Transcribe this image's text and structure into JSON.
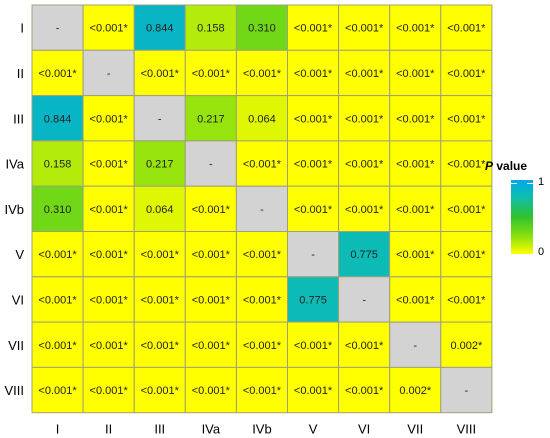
{
  "chart_data": {
    "type": "heatmap",
    "labels": [
      "I",
      "II",
      "III",
      "IVa",
      "IVb",
      "V",
      "VI",
      "VII",
      "VIII"
    ],
    "cells": [
      [
        "-",
        "<0.001*",
        "0.844",
        "0.158",
        "0.310",
        "<0.001*",
        "<0.001*",
        "<0.001*",
        "<0.001*"
      ],
      [
        "<0.001*",
        "-",
        "<0.001*",
        "<0.001*",
        "<0.001*",
        "<0.001*",
        "<0.001*",
        "<0.001*",
        "<0.001*"
      ],
      [
        "0.844",
        "<0.001*",
        "-",
        "0.217",
        "0.064",
        "<0.001*",
        "<0.001*",
        "<0.001*",
        "<0.001*"
      ],
      [
        "0.158",
        "<0.001*",
        "0.217",
        "-",
        "<0.001*",
        "<0.001*",
        "<0.001*",
        "<0.001*",
        "<0.001*"
      ],
      [
        "0.310",
        "<0.001*",
        "0.064",
        "<0.001*",
        "-",
        "<0.001*",
        "<0.001*",
        "<0.001*",
        "<0.001*"
      ],
      [
        "<0.001*",
        "<0.001*",
        "<0.001*",
        "<0.001*",
        "<0.001*",
        "-",
        "0.775",
        "<0.001*",
        "<0.001*"
      ],
      [
        "<0.001*",
        "<0.001*",
        "<0.001*",
        "<0.001*",
        "<0.001*",
        "0.775",
        "-",
        "<0.001*",
        "<0.001*"
      ],
      [
        "<0.001*",
        "<0.001*",
        "<0.001*",
        "<0.001*",
        "<0.001*",
        "<0.001*",
        "<0.001*",
        "-",
        "0.002*"
      ],
      [
        "<0.001*",
        "<0.001*",
        "<0.001*",
        "<0.001*",
        "<0.001*",
        "<0.001*",
        "<0.001*",
        "0.002*",
        "-"
      ]
    ],
    "values": [
      [
        null,
        0.001,
        0.844,
        0.158,
        0.31,
        0.001,
        0.001,
        0.001,
        0.001
      ],
      [
        0.001,
        null,
        0.001,
        0.001,
        0.001,
        0.001,
        0.001,
        0.001,
        0.001
      ],
      [
        0.844,
        0.001,
        null,
        0.217,
        0.064,
        0.001,
        0.001,
        0.001,
        0.001
      ],
      [
        0.158,
        0.001,
        0.217,
        null,
        0.001,
        0.001,
        0.001,
        0.001,
        0.001
      ],
      [
        0.31,
        0.001,
        0.064,
        0.001,
        null,
        0.001,
        0.001,
        0.001,
        0.001
      ],
      [
        0.001,
        0.001,
        0.001,
        0.001,
        0.001,
        null,
        0.775,
        0.001,
        0.001
      ],
      [
        0.001,
        0.001,
        0.001,
        0.001,
        0.001,
        0.775,
        null,
        0.001,
        0.001
      ],
      [
        0.001,
        0.001,
        0.001,
        0.001,
        0.001,
        0.001,
        0.001,
        null,
        0.002
      ],
      [
        0.001,
        0.001,
        0.001,
        0.001,
        0.001,
        0.001,
        0.001,
        0.002,
        null
      ]
    ],
    "legend": {
      "title_italic": "P",
      "title_rest": "value",
      "min_label": "0",
      "max_label": "1"
    },
    "colors": {
      "diagonal": "#d3d3d3",
      "grid": "#a0a07a",
      "scale": [
        "#ffff00",
        "#86df10",
        "#2fc22f",
        "#0dbdb0",
        "#00a8e8"
      ]
    }
  }
}
